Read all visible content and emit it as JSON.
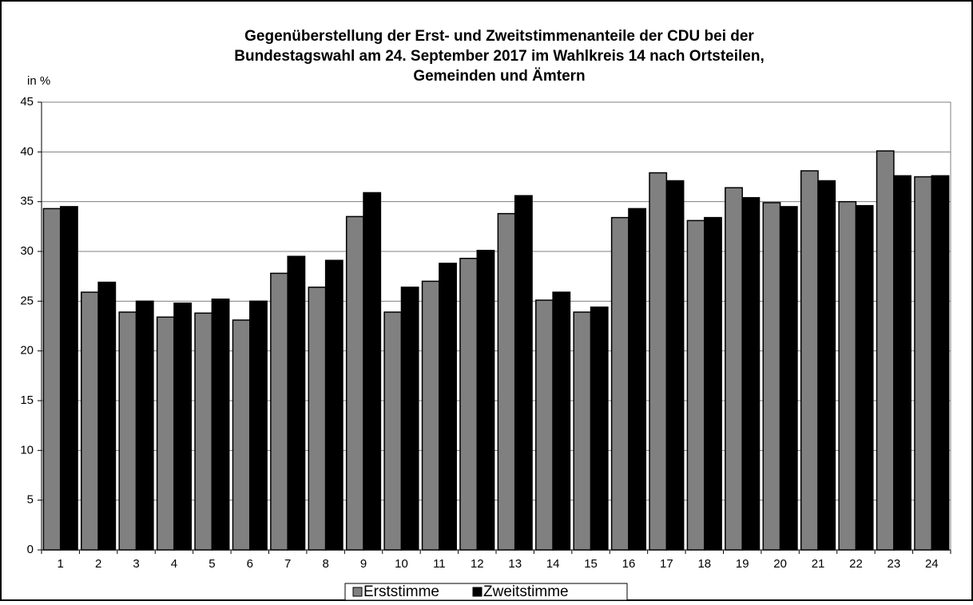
{
  "chart_data": {
    "type": "bar",
    "title": [
      "Gegenüberstellung der Erst- und Zweitstimmenanteile der CDU bei der",
      "Bundestagswahl am 24. September 2017 im Wahlkreis 14 nach Ortsteilen,",
      "Gemeinden und Ämtern"
    ],
    "y_label": "in %",
    "categories": [
      "1",
      "2",
      "3",
      "4",
      "5",
      "6",
      "7",
      "8",
      "9",
      "10",
      "11",
      "12",
      "13",
      "14",
      "15",
      "16",
      "17",
      "18",
      "19",
      "20",
      "21",
      "22",
      "23",
      "24"
    ],
    "series": [
      {
        "name": "Erststimme",
        "color": "#808080",
        "values": [
          34.3,
          25.9,
          23.9,
          23.4,
          23.8,
          23.1,
          27.8,
          26.4,
          33.5,
          23.9,
          27.0,
          29.3,
          33.8,
          25.1,
          23.9,
          33.4,
          37.9,
          33.1,
          36.4,
          34.9,
          38.1,
          35.0,
          40.1,
          37.5
        ]
      },
      {
        "name": "Zweitstimme",
        "color": "#000000",
        "values": [
          34.5,
          26.9,
          25.0,
          24.8,
          25.2,
          25.0,
          29.5,
          29.1,
          35.9,
          26.4,
          28.8,
          30.1,
          35.6,
          25.9,
          24.4,
          34.3,
          37.1,
          33.4,
          35.4,
          34.5,
          37.1,
          34.6,
          37.6,
          37.6
        ]
      }
    ],
    "ylim": [
      0,
      45
    ],
    "yticks": [
      0,
      5,
      10,
      15,
      20,
      25,
      30,
      35,
      40,
      45
    ],
    "grid": true,
    "legend": "bottom"
  }
}
